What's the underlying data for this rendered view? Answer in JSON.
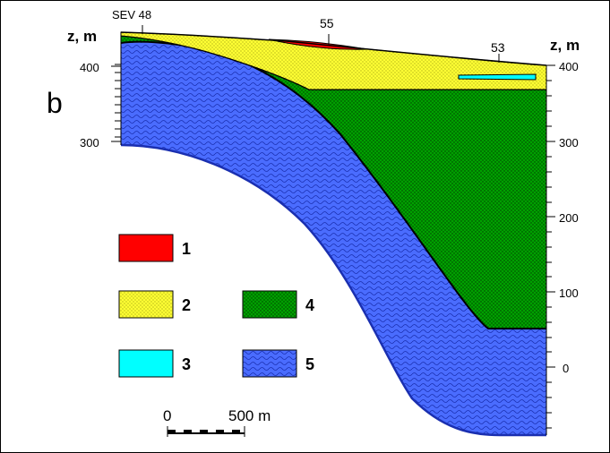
{
  "panel_label": "b",
  "axis_labels": {
    "left": "z, m",
    "right": "z, m"
  },
  "left_ticks": [
    "400",
    "300"
  ],
  "right_ticks": [
    "400",
    "300",
    "200",
    "100",
    "0"
  ],
  "well_labels": [
    "SEV 48",
    "55",
    "53"
  ],
  "legend": [
    {
      "number": "1",
      "color": "#ff0000",
      "pattern": "none"
    },
    {
      "number": "2",
      "color": "#ffff33",
      "pattern": "dots"
    },
    {
      "number": "3",
      "color": "#00ffff",
      "pattern": "none"
    },
    {
      "number": "4",
      "color": "#00a000",
      "pattern": "dots"
    },
    {
      "number": "5",
      "color": "#4a6cff",
      "pattern": "waves"
    }
  ],
  "scale_bar": {
    "start_label": "0",
    "end_label": "500 m"
  }
}
